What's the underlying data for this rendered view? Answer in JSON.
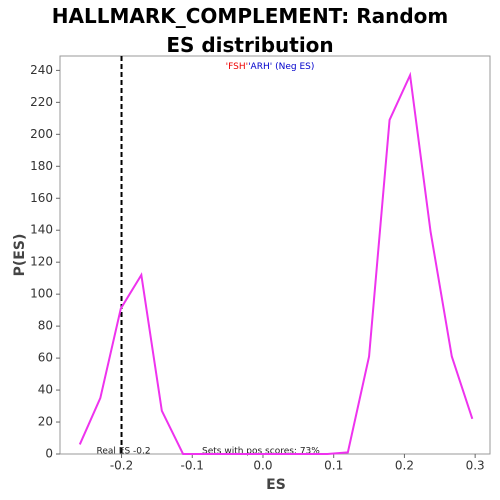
{
  "chart_data": {
    "type": "line",
    "title": "HALLMARK_COMPLEMENT: Random ES distribution",
    "xlabel": "ES",
    "ylabel": "P(ES)",
    "legend": {
      "pos": "'FSH'",
      "neg": "'ARH'",
      "note": "(Neg ES)"
    },
    "real_es": -0.2,
    "real_es_label": "Real ES -0.2",
    "pos_note": "Sets with pos scores: 73%",
    "x": [
      -0.259,
      -0.23,
      -0.201,
      -0.172,
      -0.143,
      -0.113,
      -0.084,
      -0.055,
      -0.025,
      0.004,
      0.033,
      0.062,
      0.091,
      0.12,
      0.15,
      0.179,
      0.208,
      0.237,
      0.267,
      0.296
    ],
    "series": [
      {
        "color": "#ee33ee",
        "values": [
          6,
          35,
          91,
          112,
          27,
          0,
          0,
          0,
          0,
          0,
          0,
          0,
          0,
          1,
          61,
          209,
          237,
          139,
          61,
          22
        ]
      }
    ],
    "xlim": [
      -0.287,
      0.321
    ],
    "ylim": [
      0,
      249
    ],
    "xticks": [
      -0.2,
      -0.1,
      {
        "value": 0,
        "label": "0.0"
      },
      0.1,
      0.2,
      0.3
    ],
    "yticks": [
      0,
      20,
      40,
      60,
      80,
      100,
      120,
      140,
      160,
      180,
      200,
      220,
      240
    ]
  }
}
